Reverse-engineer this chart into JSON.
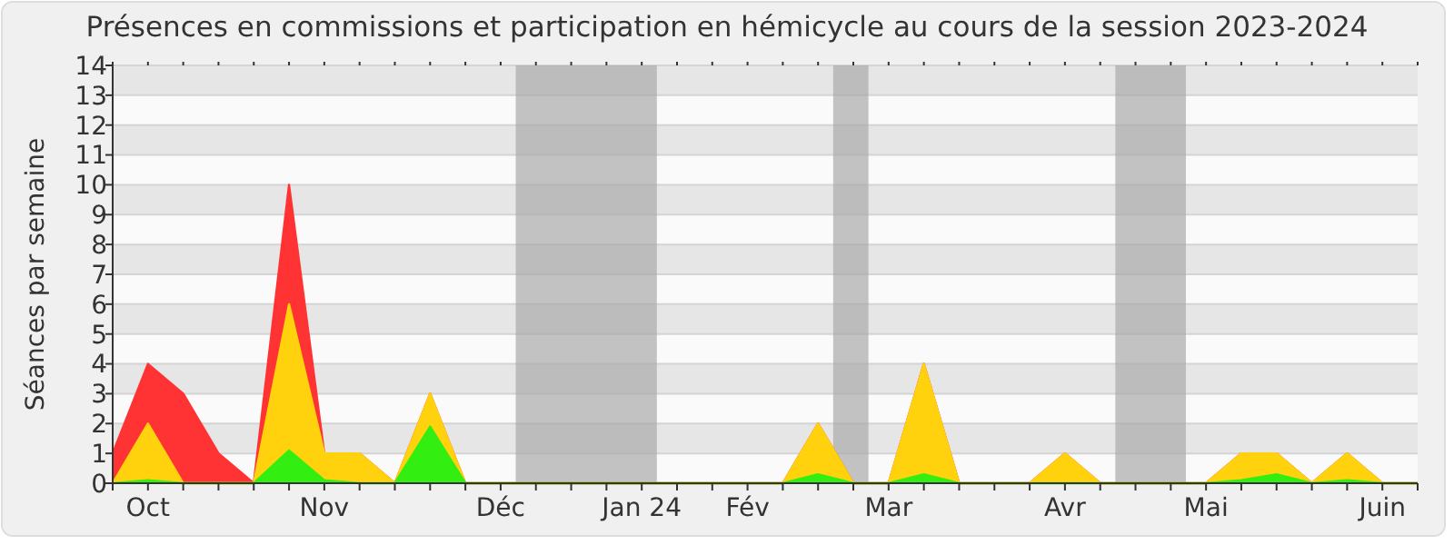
{
  "chart_data": {
    "type": "area",
    "title": "Présences en commissions et participation en hémicycle au cours de la session 2023-2024",
    "ylabel": "Séances par semaine",
    "x": [
      "2023-09-30",
      "2023-10-07",
      "2023-10-14",
      "2023-10-21",
      "2023-10-28",
      "2023-11-04",
      "2023-11-11",
      "2023-11-18",
      "2023-11-25",
      "2023-12-02",
      "2023-12-09",
      "2023-12-16",
      "2023-12-23",
      "2023-12-30",
      "2024-01-06",
      "2024-01-13",
      "2024-01-20",
      "2024-01-27",
      "2024-02-03",
      "2024-02-10",
      "2024-02-17",
      "2024-02-24",
      "2024-03-02",
      "2024-03-09",
      "2024-03-16",
      "2024-03-23",
      "2024-03-30",
      "2024-04-06",
      "2024-04-13",
      "2024-04-20",
      "2024-04-27",
      "2024-05-04",
      "2024-05-11",
      "2024-05-18",
      "2024-05-25",
      "2024-06-01",
      "2024-06-08",
      "2024-06-15"
    ],
    "series": [
      {
        "color": "#ff3333",
        "values": [
          1,
          4,
          3,
          1,
          0,
          10,
          1,
          1,
          0,
          3,
          0,
          0,
          0,
          0,
          0,
          0,
          0,
          0,
          0,
          0,
          2,
          0,
          0,
          4,
          0,
          0,
          0,
          1,
          0,
          0,
          0,
          0,
          1,
          1,
          0,
          1,
          0,
          0
        ]
      },
      {
        "color": "#ffd20d",
        "values": [
          0,
          2,
          0,
          0,
          0,
          6,
          1,
          1,
          0,
          3,
          0,
          0,
          0,
          0,
          0,
          0,
          0,
          0,
          0,
          0,
          2,
          0,
          0,
          4,
          0,
          0,
          0,
          1,
          0,
          0,
          0,
          0,
          1,
          1,
          0,
          1,
          0,
          0
        ]
      },
      {
        "color": "#33ee11",
        "values": [
          0,
          0.1,
          0,
          0,
          0,
          1.1,
          0.1,
          0,
          0,
          1.9,
          0,
          0,
          0,
          0,
          0,
          0,
          0,
          0,
          0,
          0,
          0.3,
          0,
          0,
          0.3,
          0,
          0,
          0,
          0,
          0,
          0,
          0,
          0,
          0.1,
          0.3,
          0,
          0.1,
          0,
          0
        ]
      }
    ],
    "xlim": [
      "2023-09-30",
      "2024-06-15"
    ],
    "xticks": [
      {
        "value": "2023-09-30",
        "label": null
      },
      {
        "value": "2023-10-07",
        "label": "Oct"
      },
      {
        "value": "2023-10-14",
        "label": null
      },
      {
        "value": "2023-10-21",
        "label": null
      },
      {
        "value": "2023-10-28",
        "label": null
      },
      {
        "value": "2023-11-04",
        "label": null
      },
      {
        "value": "2023-11-11",
        "label": "Nov"
      },
      {
        "value": "2023-11-18",
        "label": null
      },
      {
        "value": "2023-11-25",
        "label": null
      },
      {
        "value": "2023-12-02",
        "label": null
      },
      {
        "value": "2023-12-09",
        "label": null
      },
      {
        "value": "2023-12-16",
        "label": "Déc"
      },
      {
        "value": "2023-12-23",
        "label": null
      },
      {
        "value": "2023-12-30",
        "label": null
      },
      {
        "value": "2024-01-06",
        "label": null
      },
      {
        "value": "2024-01-13",
        "label": "Jan 24"
      },
      {
        "value": "2024-01-20",
        "label": null
      },
      {
        "value": "2024-01-27",
        "label": null
      },
      {
        "value": "2024-02-03",
        "label": "Fév"
      },
      {
        "value": "2024-02-10",
        "label": null
      },
      {
        "value": "2024-02-17",
        "label": null
      },
      {
        "value": "2024-02-24",
        "label": null
      },
      {
        "value": "2024-03-02",
        "label": "Mar"
      },
      {
        "value": "2024-03-09",
        "label": null
      },
      {
        "value": "2024-03-16",
        "label": null
      },
      {
        "value": "2024-03-23",
        "label": null
      },
      {
        "value": "2024-03-30",
        "label": null
      },
      {
        "value": "2024-04-06",
        "label": "Avr"
      },
      {
        "value": "2024-04-13",
        "label": null
      },
      {
        "value": "2024-04-20",
        "label": null
      },
      {
        "value": "2024-04-27",
        "label": null
      },
      {
        "value": "2024-05-04",
        "label": "Mai"
      },
      {
        "value": "2024-05-11",
        "label": null
      },
      {
        "value": "2024-05-18",
        "label": null
      },
      {
        "value": "2024-05-25",
        "label": null
      },
      {
        "value": "2024-06-01",
        "label": null
      },
      {
        "value": "2024-06-08",
        "label": "Juin"
      },
      {
        "value": "2024-06-15",
        "label": null
      }
    ],
    "ylim": [
      0,
      14
    ],
    "yticks": [
      0,
      1,
      2,
      3,
      4,
      5,
      6,
      7,
      8,
      9,
      10,
      11,
      12,
      13,
      14
    ],
    "grid": "y",
    "bands": [
      {
        "axis": "x",
        "from": "2023-12-19",
        "to": "2024-01-16",
        "color": "#aaaaaa"
      },
      {
        "axis": "x",
        "from": "2024-02-20",
        "to": "2024-02-27",
        "color": "#aaaaaa"
      },
      {
        "axis": "x",
        "from": "2024-04-16",
        "to": "2024-04-30",
        "color": "#aaaaaa"
      }
    ]
  }
}
